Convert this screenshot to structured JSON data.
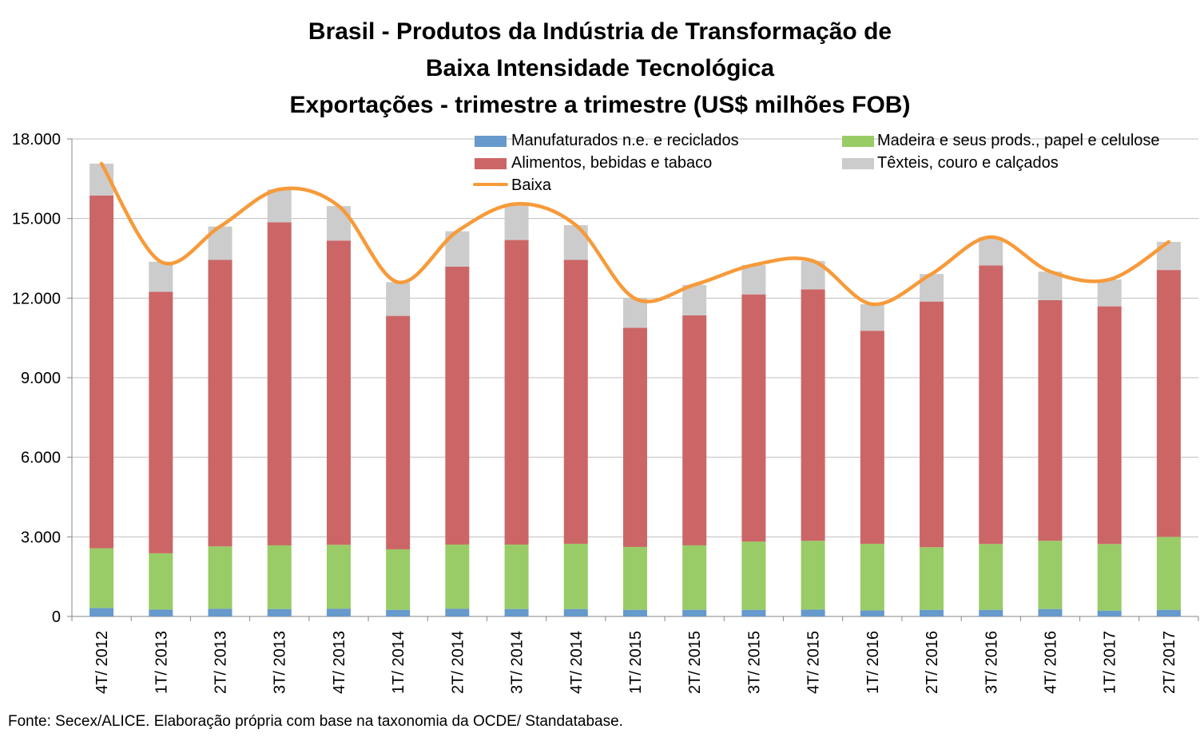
{
  "title_lines": [
    "Brasil - Produtos da Indústria de Transformação de",
    "Baixa Intensidade Tecnológica",
    "Exportações - trimestre a trimestre (US$ milhões FOB)"
  ],
  "source": "Fonte: Secex/ALICE. Elaboração própria com base na taxonomia da OCDE/ Standatabase.",
  "chart_data": {
    "type": "bar",
    "stacked": true,
    "title": "Brasil - Produtos da Indústria de Transformação de Baixa Intensidade Tecnológica Exportações - trimestre a trimestre (US$ milhões FOB)",
    "xlabel": "",
    "ylabel": "",
    "ylim": [
      0,
      18000
    ],
    "yticks": [
      0,
      3000,
      6000,
      9000,
      12000,
      15000,
      18000
    ],
    "ytick_labels": [
      "0",
      "3.000",
      "6.000",
      "9.000",
      "12.000",
      "15.000",
      "18.000"
    ],
    "grid": "horizontal",
    "legend_position": "top",
    "categories": [
      "4T/ 2012",
      "1T/ 2013",
      "2T/ 2013",
      "3T/ 2013",
      "4T/ 2013",
      "1T/ 2014",
      "2T/ 2014",
      "3T/ 2014",
      "4T/ 2014",
      "1T/ 2015",
      "2T/ 2015",
      "3T/ 2015",
      "4T/ 2015",
      "1T/ 2016",
      "2T/ 2016",
      "3T/ 2016",
      "4T/ 2016",
      "1T/ 2017",
      "2T/ 2017"
    ],
    "series": [
      {
        "name": "Manufaturados n.e. e reciclados",
        "color": "#6699cc",
        "values": [
          320,
          260,
          290,
          280,
          290,
          250,
          290,
          280,
          280,
          250,
          250,
          250,
          260,
          230,
          250,
          250,
          280,
          220,
          250
        ]
      },
      {
        "name": "Madeira e seus prods., papel e celulose",
        "color": "#99cc66",
        "values": [
          2250,
          2120,
          2350,
          2400,
          2410,
          2280,
          2420,
          2430,
          2460,
          2370,
          2430,
          2570,
          2590,
          2510,
          2360,
          2480,
          2570,
          2510,
          2750
        ]
      },
      {
        "name": "Alimentos, bebidas e tabaco",
        "color": "#cc6666",
        "values": [
          13300,
          9860,
          10800,
          12180,
          11470,
          8800,
          10480,
          11480,
          10700,
          8260,
          8670,
          9320,
          9480,
          8030,
          9260,
          10500,
          9070,
          8960,
          10060
        ]
      },
      {
        "name": "Têxteis, couro e calçados",
        "color": "#cccccc",
        "values": [
          1200,
          1130,
          1260,
          1240,
          1300,
          1270,
          1330,
          1360,
          1310,
          1100,
          1150,
          1110,
          1070,
          1000,
          1040,
          1070,
          1080,
          1010,
          1060
        ]
      }
    ],
    "line": {
      "name": "Baixa",
      "color": "#f79a3a",
      "values": [
        17070,
        13370,
        14700,
        16100,
        15470,
        12600,
        14520,
        15550,
        14750,
        11980,
        12500,
        13250,
        13400,
        11770,
        12910,
        14300,
        13000,
        12700,
        14120
      ]
    }
  }
}
